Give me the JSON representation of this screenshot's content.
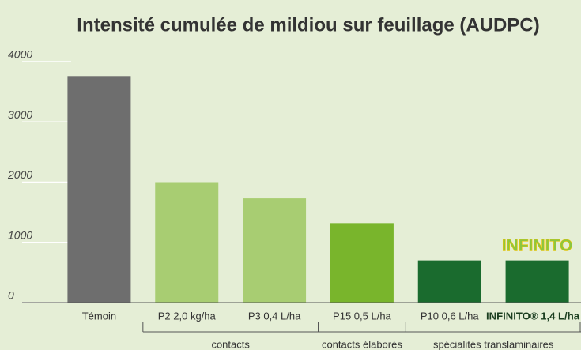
{
  "chart_data": {
    "type": "bar",
    "title": "Intensité cumulée de mildiou sur feuillage (AUDPC)",
    "categories": [
      "Témoin",
      "P2 2,0 kg/ha",
      "P3 0,4 L/ha",
      "P15 0,5 L/ha",
      "P10 0,6 L/ha",
      "INFINITO® 1,4 L/ha"
    ],
    "values": [
      3760,
      2000,
      1730,
      1320,
      700,
      700
    ],
    "colors": [
      "#6e6e6e",
      "#a8cd72",
      "#a8cd72",
      "#79b52c",
      "#1a6b2e",
      "#1a6b2e"
    ],
    "groups": [
      "contacts",
      "contacts élaborés",
      "spécialités translaminaires"
    ],
    "annotation": "INFINITO",
    "ylim": [
      0,
      4000
    ],
    "yticks": [
      0,
      1000,
      2000,
      3000,
      4000
    ],
    "grid": true
  }
}
